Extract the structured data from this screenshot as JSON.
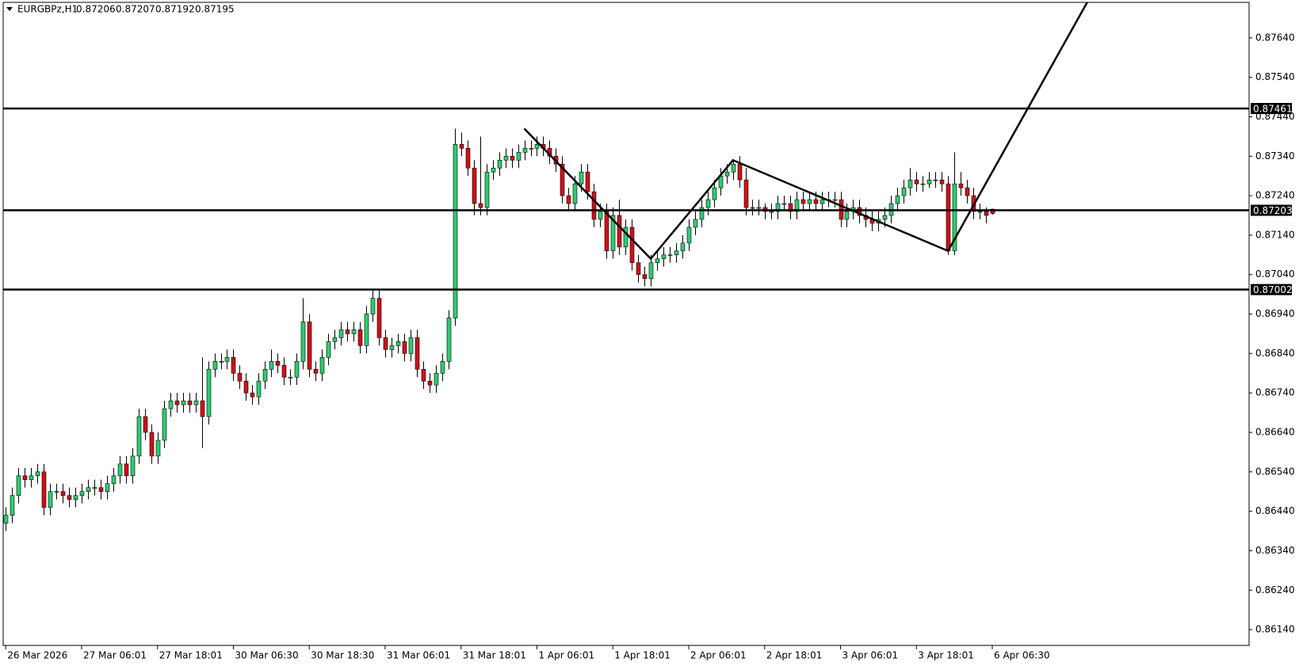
{
  "chart_data": {
    "type": "candlestick",
    "symbol": "EURGBPz,H1",
    "header_ohlc": [
      0.87206,
      0.87207,
      0.87192,
      0.87195
    ],
    "up_color": "#2ecc71",
    "down_color": "#d0101a",
    "outline_color": "#000000",
    "ylim": [
      0.861,
      0.8773
    ],
    "yticks": [
      {
        "value": 0.8764,
        "label": "0.87640"
      },
      {
        "value": 0.8754,
        "label": "0.87540"
      },
      {
        "value": 0.8744,
        "label": "0.87440"
      },
      {
        "value": 0.8734,
        "label": "0.87340"
      },
      {
        "value": 0.8724,
        "label": "0.87240"
      },
      {
        "value": 0.8714,
        "label": "0.87140"
      },
      {
        "value": 0.8704,
        "label": "0.87040"
      },
      {
        "value": 0.8694,
        "label": "0.86940"
      },
      {
        "value": 0.8684,
        "label": "0.86840"
      },
      {
        "value": 0.8674,
        "label": "0.86740"
      },
      {
        "value": 0.8664,
        "label": "0.86640"
      },
      {
        "value": 0.8654,
        "label": "0.86540"
      },
      {
        "value": 0.8644,
        "label": "0.86440"
      },
      {
        "value": 0.8634,
        "label": "0.86340"
      },
      {
        "value": 0.8624,
        "label": "0.86240"
      },
      {
        "value": 0.8614,
        "label": "0.86140"
      }
    ],
    "xlim": [
      -0.4,
      196.6
    ],
    "xticks": [
      {
        "value": 0,
        "label": "26 Mar 2026"
      },
      {
        "value": 12,
        "label": "27 Mar 06:01"
      },
      {
        "value": 24,
        "label": "27 Mar 18:01"
      },
      {
        "value": 36,
        "label": "30 Mar 06:30"
      },
      {
        "value": 48,
        "label": "30 Mar 18:30"
      },
      {
        "value": 60,
        "label": "31 Mar 06:01"
      },
      {
        "value": 72,
        "label": "31 Mar 18:01"
      },
      {
        "value": 84,
        "label": "1 Apr 06:01"
      },
      {
        "value": 96,
        "label": "1 Apr 18:01"
      },
      {
        "value": 108,
        "label": "2 Apr 06:01"
      },
      {
        "value": 120,
        "label": "2 Apr 18:01"
      },
      {
        "value": 132,
        "label": "3 Apr 06:01"
      },
      {
        "value": 144,
        "label": "3 Apr 18:01"
      },
      {
        "value": 156,
        "label": "6 Apr 06:30"
      }
    ],
    "levels": [
      0.87461,
      0.87203,
      0.87002
    ],
    "zigzag": {
      "x": [
        82,
        102,
        115,
        149,
        171
      ],
      "y": [
        0.8741,
        0.8708,
        0.8733,
        0.871,
        0.8773
      ]
    },
    "ohlc": [
      [
        0.8641,
        0.8645,
        0.8639,
        0.8643
      ],
      [
        0.8643,
        0.865,
        0.8641,
        0.8648
      ],
      [
        0.8648,
        0.8655,
        0.8646,
        0.8653
      ],
      [
        0.8653,
        0.8655,
        0.865,
        0.8652
      ],
      [
        0.8652,
        0.8655,
        0.865,
        0.8653
      ],
      [
        0.8653,
        0.8656,
        0.8651,
        0.8654
      ],
      [
        0.8654,
        0.8656,
        0.8643,
        0.8645
      ],
      [
        0.8645,
        0.8651,
        0.8643,
        0.8649
      ],
      [
        0.8649,
        0.8651,
        0.8647,
        0.8649
      ],
      [
        0.8649,
        0.8651,
        0.8646,
        0.8648
      ],
      [
        0.8648,
        0.865,
        0.8645,
        0.8647
      ],
      [
        0.8647,
        0.865,
        0.8645,
        0.8648
      ],
      [
        0.8648,
        0.8651,
        0.8646,
        0.8649
      ],
      [
        0.8649,
        0.8652,
        0.8647,
        0.865
      ],
      [
        0.865,
        0.8652,
        0.8648,
        0.865
      ],
      [
        0.865,
        0.8652,
        0.8647,
        0.8649
      ],
      [
        0.8649,
        0.8653,
        0.8647,
        0.8651
      ],
      [
        0.8651,
        0.8655,
        0.8649,
        0.8653
      ],
      [
        0.8653,
        0.8658,
        0.8651,
        0.8656
      ],
      [
        0.8656,
        0.8658,
        0.8651,
        0.8653
      ],
      [
        0.8653,
        0.866,
        0.8651,
        0.8658
      ],
      [
        0.8658,
        0.867,
        0.8656,
        0.8668
      ],
      [
        0.8668,
        0.867,
        0.8662,
        0.8664
      ],
      [
        0.8664,
        0.8666,
        0.8656,
        0.8658
      ],
      [
        0.8658,
        0.8664,
        0.8656,
        0.8662
      ],
      [
        0.8662,
        0.8672,
        0.866,
        0.867
      ],
      [
        0.867,
        0.8674,
        0.8668,
        0.8672
      ],
      [
        0.8672,
        0.8674,
        0.8669,
        0.8671
      ],
      [
        0.8671,
        0.8674,
        0.8669,
        0.8672
      ],
      [
        0.8672,
        0.8674,
        0.8669,
        0.8671
      ],
      [
        0.8671,
        0.8674,
        0.8669,
        0.8672
      ],
      [
        0.8672,
        0.8683,
        0.866,
        0.8668
      ],
      [
        0.8668,
        0.8682,
        0.8666,
        0.868
      ],
      [
        0.868,
        0.8684,
        0.8678,
        0.8682
      ],
      [
        0.8682,
        0.8684,
        0.868,
        0.8682
      ],
      [
        0.8682,
        0.8685,
        0.868,
        0.8683
      ],
      [
        0.8683,
        0.8685,
        0.8677,
        0.8679
      ],
      [
        0.8679,
        0.8681,
        0.8675,
        0.8677
      ],
      [
        0.8677,
        0.8679,
        0.8672,
        0.8674
      ],
      [
        0.8674,
        0.8676,
        0.8671,
        0.8673
      ],
      [
        0.8673,
        0.8679,
        0.8671,
        0.8677
      ],
      [
        0.8677,
        0.8682,
        0.8675,
        0.868
      ],
      [
        0.868,
        0.8685,
        0.8678,
        0.8682
      ],
      [
        0.8682,
        0.8684,
        0.8679,
        0.8681
      ],
      [
        0.8681,
        0.8683,
        0.8676,
        0.8678
      ],
      [
        0.8678,
        0.868,
        0.8676,
        0.8678
      ],
      [
        0.8678,
        0.8684,
        0.8676,
        0.8682
      ],
      [
        0.8682,
        0.8698,
        0.868,
        0.8692
      ],
      [
        0.8692,
        0.8694,
        0.8678,
        0.868
      ],
      [
        0.868,
        0.8682,
        0.8677,
        0.8679
      ],
      [
        0.8679,
        0.8685,
        0.8677,
        0.8683
      ],
      [
        0.8683,
        0.8689,
        0.8681,
        0.8687
      ],
      [
        0.8687,
        0.869,
        0.8685,
        0.8688
      ],
      [
        0.8688,
        0.8692,
        0.8686,
        0.869
      ],
      [
        0.869,
        0.8692,
        0.8687,
        0.8689
      ],
      [
        0.8689,
        0.8692,
        0.8687,
        0.869
      ],
      [
        0.869,
        0.8692,
        0.8684,
        0.8686
      ],
      [
        0.8686,
        0.8696,
        0.8684,
        0.8694
      ],
      [
        0.8694,
        0.87,
        0.8692,
        0.8698
      ],
      [
        0.8698,
        0.87,
        0.8686,
        0.8688
      ],
      [
        0.8688,
        0.869,
        0.8683,
        0.8685
      ],
      [
        0.8685,
        0.8688,
        0.8683,
        0.8686
      ],
      [
        0.8686,
        0.8689,
        0.8684,
        0.8687
      ],
      [
        0.8687,
        0.8689,
        0.8682,
        0.8684
      ],
      [
        0.8684,
        0.869,
        0.8682,
        0.8688
      ],
      [
        0.8688,
        0.869,
        0.8678,
        0.868
      ],
      [
        0.868,
        0.8682,
        0.8675,
        0.8677
      ],
      [
        0.8677,
        0.8679,
        0.8674,
        0.8676
      ],
      [
        0.8676,
        0.8681,
        0.8674,
        0.8679
      ],
      [
        0.8679,
        0.8684,
        0.8677,
        0.8682
      ],
      [
        0.8682,
        0.8695,
        0.868,
        0.8693
      ],
      [
        0.8693,
        0.8741,
        0.8691,
        0.8737
      ],
      [
        0.8737,
        0.874,
        0.8734,
        0.8736
      ],
      [
        0.8736,
        0.8738,
        0.8729,
        0.8731
      ],
      [
        0.8731,
        0.8733,
        0.8719,
        0.8722
      ],
      [
        0.8722,
        0.8739,
        0.8719,
        0.8721
      ],
      [
        0.8721,
        0.8732,
        0.8719,
        0.873
      ],
      [
        0.873,
        0.8733,
        0.8728,
        0.8731
      ],
      [
        0.8731,
        0.8735,
        0.8729,
        0.8733
      ],
      [
        0.8733,
        0.8736,
        0.8731,
        0.8734
      ],
      [
        0.8734,
        0.8736,
        0.8731,
        0.8733
      ],
      [
        0.8733,
        0.8737,
        0.8731,
        0.8735
      ],
      [
        0.8735,
        0.8738,
        0.8733,
        0.8736
      ],
      [
        0.8736,
        0.8738,
        0.8734,
        0.8736
      ],
      [
        0.8736,
        0.8739,
        0.8734,
        0.8737
      ],
      [
        0.8737,
        0.8739,
        0.8734,
        0.8736
      ],
      [
        0.8736,
        0.8738,
        0.8732,
        0.8734
      ],
      [
        0.8734,
        0.8736,
        0.873,
        0.8732
      ],
      [
        0.8732,
        0.8734,
        0.8722,
        0.8724
      ],
      [
        0.8724,
        0.8726,
        0.872,
        0.8722
      ],
      [
        0.8722,
        0.8729,
        0.872,
        0.8727
      ],
      [
        0.8727,
        0.8732,
        0.8725,
        0.873
      ],
      [
        0.873,
        0.8732,
        0.8723,
        0.8725
      ],
      [
        0.8725,
        0.8727,
        0.8716,
        0.8718
      ],
      [
        0.8718,
        0.8722,
        0.8716,
        0.872
      ],
      [
        0.872,
        0.8722,
        0.8708,
        0.871
      ],
      [
        0.871,
        0.8721,
        0.8708,
        0.8719
      ],
      [
        0.8719,
        0.8723,
        0.8709,
        0.8711
      ],
      [
        0.8711,
        0.8718,
        0.8709,
        0.8716
      ],
      [
        0.8716,
        0.8718,
        0.8705,
        0.8707
      ],
      [
        0.8707,
        0.8709,
        0.8702,
        0.8704
      ],
      [
        0.8704,
        0.8706,
        0.8701,
        0.8703
      ],
      [
        0.8703,
        0.8709,
        0.8701,
        0.8707
      ],
      [
        0.8707,
        0.871,
        0.8705,
        0.8708
      ],
      [
        0.8708,
        0.8711,
        0.8706,
        0.8709
      ],
      [
        0.8709,
        0.8711,
        0.8707,
        0.8709
      ],
      [
        0.8709,
        0.8712,
        0.8707,
        0.871
      ],
      [
        0.871,
        0.8714,
        0.8708,
        0.8712
      ],
      [
        0.8712,
        0.8718,
        0.871,
        0.8716
      ],
      [
        0.8716,
        0.872,
        0.8714,
        0.8718
      ],
      [
        0.8718,
        0.8723,
        0.8716,
        0.8721
      ],
      [
        0.8721,
        0.8725,
        0.8719,
        0.8723
      ],
      [
        0.8723,
        0.8728,
        0.8721,
        0.8726
      ],
      [
        0.8726,
        0.8731,
        0.8724,
        0.8729
      ],
      [
        0.8729,
        0.8732,
        0.8727,
        0.873
      ],
      [
        0.873,
        0.8733,
        0.8728,
        0.8732
      ],
      [
        0.8732,
        0.8734,
        0.8726,
        0.8728
      ],
      [
        0.8728,
        0.8731,
        0.8719,
        0.8721
      ],
      [
        0.8721,
        0.8723,
        0.8719,
        0.8721
      ],
      [
        0.8721,
        0.8723,
        0.8719,
        0.8721
      ],
      [
        0.8721,
        0.8722,
        0.8718,
        0.872
      ],
      [
        0.872,
        0.8722,
        0.8718,
        0.872
      ],
      [
        0.872,
        0.8724,
        0.8718,
        0.8722
      ],
      [
        0.8722,
        0.8724,
        0.872,
        0.8722
      ],
      [
        0.8722,
        0.8724,
        0.8718,
        0.872
      ],
      [
        0.872,
        0.8725,
        0.8718,
        0.8723
      ],
      [
        0.8723,
        0.8725,
        0.872,
        0.8722
      ],
      [
        0.8722,
        0.8725,
        0.872,
        0.8723
      ],
      [
        0.8723,
        0.8725,
        0.872,
        0.8722
      ],
      [
        0.8722,
        0.8725,
        0.872,
        0.8723
      ],
      [
        0.8723,
        0.8725,
        0.8721,
        0.8723
      ],
      [
        0.8723,
        0.8725,
        0.8721,
        0.8723
      ],
      [
        0.8723,
        0.8725,
        0.8716,
        0.8718
      ],
      [
        0.8718,
        0.8722,
        0.8716,
        0.872
      ],
      [
        0.872,
        0.8723,
        0.8718,
        0.8721
      ],
      [
        0.8721,
        0.8723,
        0.8717,
        0.8719
      ],
      [
        0.8719,
        0.8721,
        0.8716,
        0.8718
      ],
      [
        0.8718,
        0.872,
        0.8715,
        0.8717
      ],
      [
        0.8717,
        0.872,
        0.8715,
        0.8718
      ],
      [
        0.8718,
        0.8721,
        0.8716,
        0.8719
      ],
      [
        0.8719,
        0.8724,
        0.8717,
        0.8722
      ],
      [
        0.8722,
        0.8726,
        0.872,
        0.8724
      ],
      [
        0.8724,
        0.8728,
        0.8722,
        0.8726
      ],
      [
        0.8726,
        0.8731,
        0.8724,
        0.8728
      ],
      [
        0.8728,
        0.873,
        0.8725,
        0.8727
      ],
      [
        0.8727,
        0.8729,
        0.8725,
        0.8727
      ],
      [
        0.8727,
        0.873,
        0.8726,
        0.8728
      ],
      [
        0.8728,
        0.873,
        0.8726,
        0.8728
      ],
      [
        0.8728,
        0.873,
        0.8725,
        0.8727
      ],
      [
        0.8727,
        0.8729,
        0.8709,
        0.871
      ],
      [
        0.871,
        0.8735,
        0.8709,
        0.8727
      ],
      [
        0.8727,
        0.873,
        0.8724,
        0.8726
      ],
      [
        0.8726,
        0.8728,
        0.8722,
        0.8724
      ],
      [
        0.8724,
        0.8726,
        0.8718,
        0.872
      ],
      [
        0.872,
        0.8722,
        0.8718,
        0.872
      ],
      [
        0.872,
        0.8721,
        0.8717,
        0.8719
      ],
      [
        0.87206,
        0.87207,
        0.87192,
        0.87195
      ]
    ]
  }
}
